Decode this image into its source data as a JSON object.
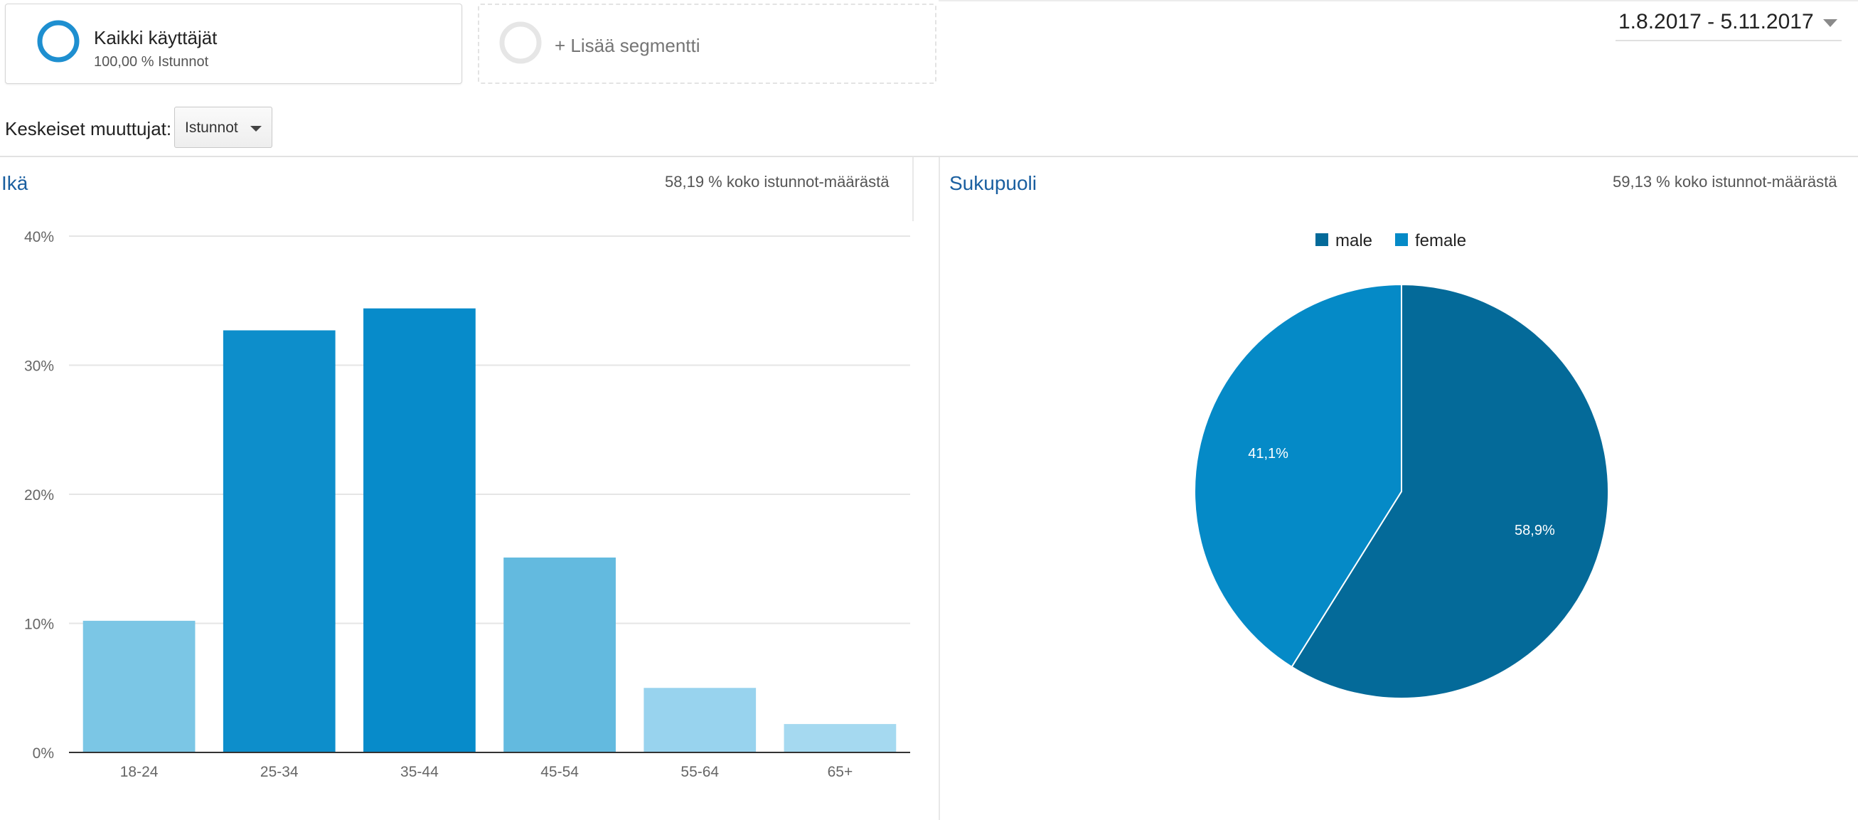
{
  "segments": {
    "active": {
      "title": "Kaikki käyttäjät",
      "subtitle": "100,00 % Istunnot"
    },
    "add_label": "+ Lisää segmentti"
  },
  "date_range": "1.8.2017 - 5.11.2017",
  "metrics": {
    "label": "Keskeiset muuttujat:",
    "selected": "Istunnot"
  },
  "age_panel": {
    "title": "Ikä",
    "note": "58,19 % koko istunnot-määrästä"
  },
  "gender_panel": {
    "title": "Sukupuoli",
    "note": "59,13 % koko istunnot-määrästä"
  },
  "chart_data": [
    {
      "type": "bar",
      "categories": [
        "18-24",
        "25-34",
        "35-44",
        "45-54",
        "55-64",
        "65+"
      ],
      "values": [
        10.2,
        32.7,
        34.4,
        15.1,
        5.0,
        2.2
      ],
      "ylim": [
        0,
        40
      ],
      "yticks": [
        "0%",
        "10%",
        "20%",
        "30%",
        "40%"
      ],
      "colors": [
        "#7bc6e5",
        "#0d8ecb",
        "#078bca",
        "#63badf",
        "#98d3ee",
        "#a5d9f0"
      ],
      "grid": true
    },
    {
      "type": "pie",
      "labels": [
        "male",
        "female"
      ],
      "values": [
        58.9,
        41.1
      ],
      "value_labels": [
        "58,9%",
        "41,1%"
      ],
      "colors": [
        "#046a99",
        "#058ac7"
      ],
      "legend": "top"
    }
  ]
}
